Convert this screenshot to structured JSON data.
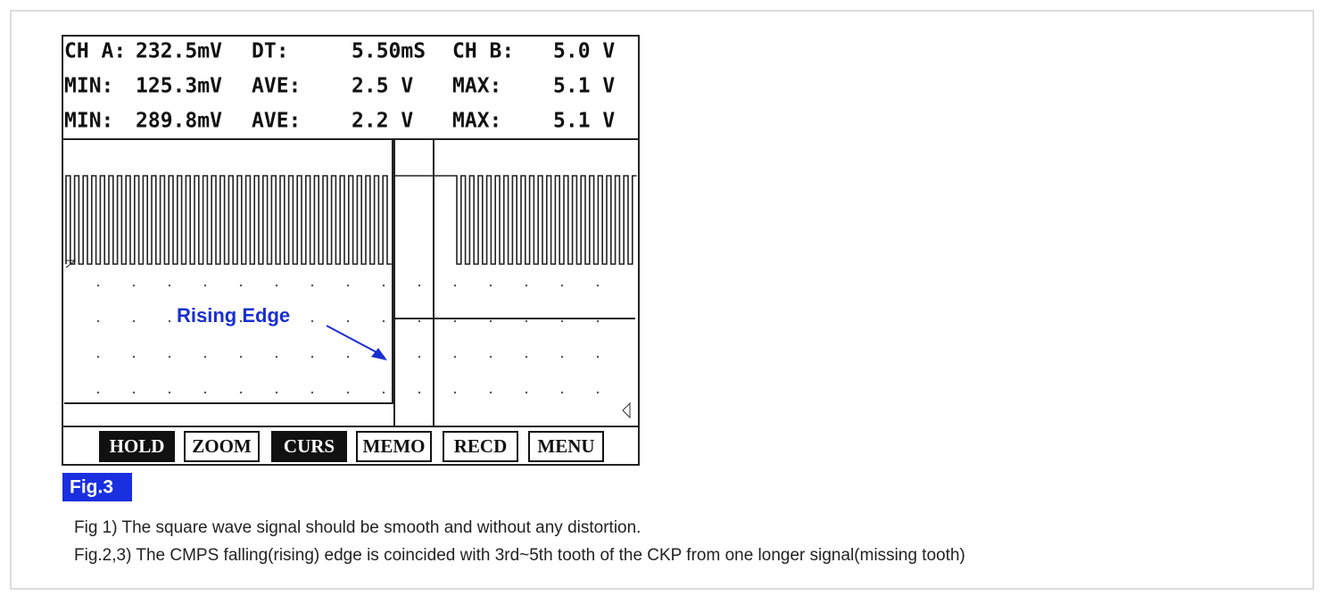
{
  "scope": {
    "readout": [
      [
        "CH A:",
        "232.5mV",
        "DT:",
        "5.50mS",
        "CH B:",
        "5.0 V"
      ],
      [
        "MIN:",
        "125.3mV",
        "AVE:",
        "2.5 V",
        "MAX:",
        "5.1 V"
      ],
      [
        "MIN:",
        "289.8mV",
        "AVE:",
        "2.2 V",
        "MAX:",
        "5.1 V"
      ]
    ],
    "annotation": "Rising Edge",
    "buttons": [
      "HOLD",
      "ZOOM",
      "CURS",
      "MEMO",
      "RECD",
      "MENU"
    ]
  },
  "figure_label": "Fig.3",
  "notes": [
    "Fig 1) The square wave signal should be smooth and without any distortion.",
    "Fig.2,3) The CMPS falling(rising) edge is coincided with 3rd~5th tooth of the CKP from one longer signal(missing tooth)"
  ]
}
